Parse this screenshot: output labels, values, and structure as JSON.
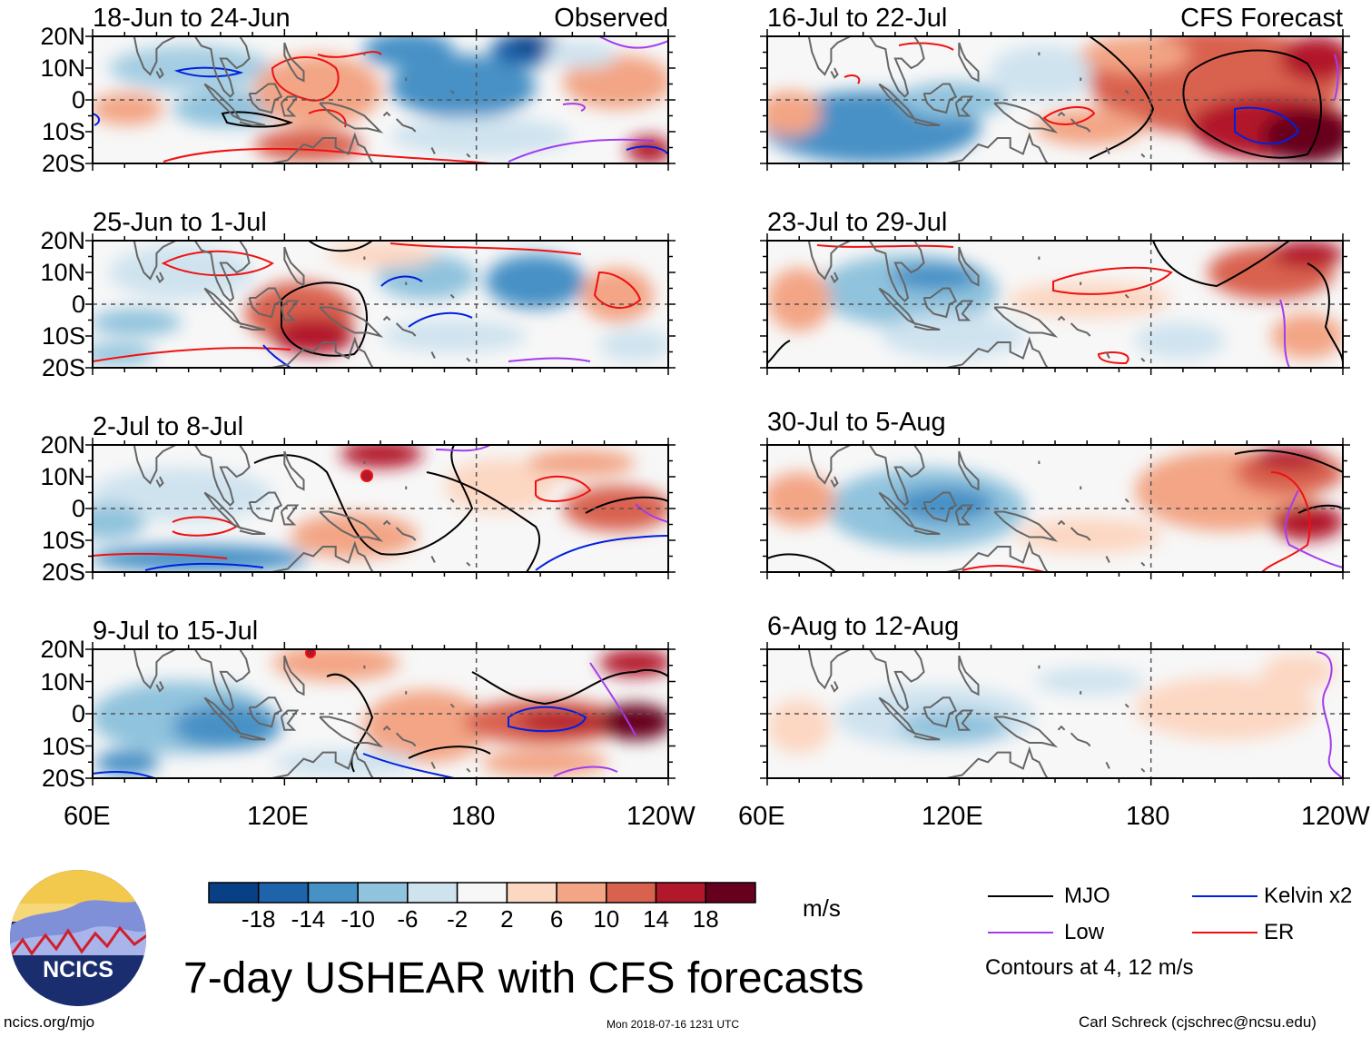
{
  "colors": {
    "mjo": "#000000",
    "low": "#a23cf0",
    "kelvin": "#0020e0",
    "er": "#f01010",
    "coast": "#666666",
    "negative": [
      "#084086",
      "#1f63ab",
      "#4691c6",
      "#90c3dd",
      "#cfe3ef"
    ],
    "neutral": "#f7f7f7",
    "positive": [
      "#fcd7c2",
      "#f3a585",
      "#d9624f",
      "#b2182b",
      "#67001f"
    ]
  },
  "map": {
    "lat_ticks": [
      "20N",
      "10N",
      "0",
      "10S",
      "20S"
    ],
    "lon_ticks": [
      "60E",
      "120E",
      "180",
      "120W"
    ],
    "lon_range_deg": [
      60,
      240
    ],
    "lat_range_deg": [
      -20,
      20
    ]
  },
  "panels": {
    "observed_label": "Observed",
    "forecast_label": "CFS Forecast",
    "observed": [
      {
        "period": "18-Jun to 24-Jun"
      },
      {
        "period": "25-Jun to 1-Jul"
      },
      {
        "period": "2-Jul to 8-Jul"
      },
      {
        "period": "9-Jul to 15-Jul"
      }
    ],
    "forecast": [
      {
        "period": "16-Jul to 22-Jul"
      },
      {
        "period": "23-Jul to 29-Jul"
      },
      {
        "period": "30-Jul to 5-Aug"
      },
      {
        "period": "6-Aug to 12-Aug"
      }
    ]
  },
  "colorbar": {
    "labels": [
      "-18",
      "-14",
      "-10",
      "-6",
      "-2",
      "2",
      "6",
      "10",
      "14",
      "18"
    ],
    "units": "m/s"
  },
  "legend": {
    "mjo": "MJO",
    "kelvin": "Kelvin x2",
    "low": "Low",
    "er": "ER",
    "note": "Contours at 4, 12 m/s"
  },
  "logo": {
    "text": "NCICS"
  },
  "title": "7-day USHEAR with CFS forecasts",
  "footer": {
    "site": "ncics.org/mjo",
    "timestamp": "Mon 2018-07-16 1231 UTC",
    "author": "Carl Schreck (cjschrec@ncsu.edu)"
  }
}
